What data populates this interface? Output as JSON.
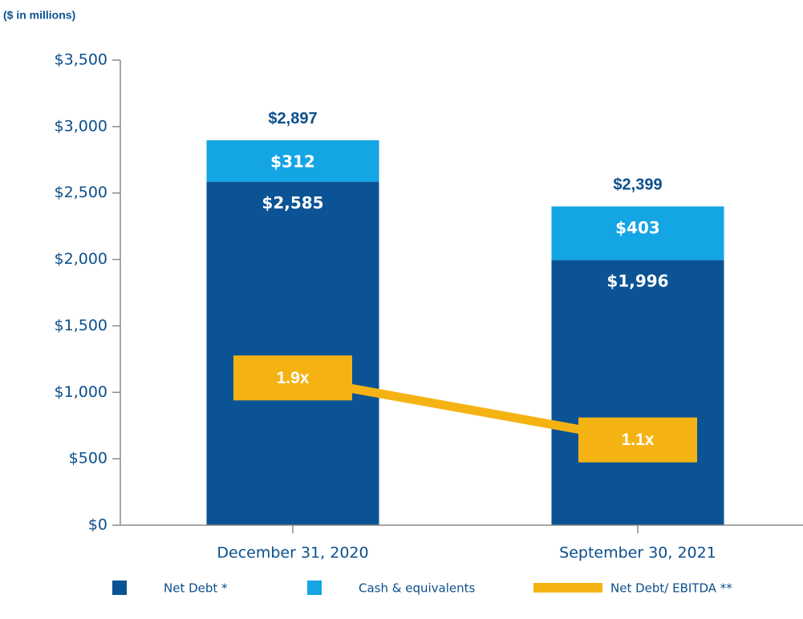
{
  "chart_data": {
    "type": "bar",
    "subtitle": "($ in millions)",
    "categories": [
      "December 31, 2020",
      "September 30, 2021"
    ],
    "series": [
      {
        "name": "Net Debt *",
        "color": "#0b5394",
        "values": [
          2585,
          1996
        ],
        "value_labels": [
          "$2,585",
          "$1,996"
        ]
      },
      {
        "name": "Cash & equivalents",
        "color": "#14a5e5",
        "values": [
          312,
          403
        ],
        "value_labels": [
          "$312",
          "$403"
        ]
      },
      {
        "name": "Net Debt/ EBITDA **",
        "type": "line",
        "axis": "y2",
        "color": "#f5b313",
        "values": [
          1.9,
          1.1
        ],
        "value_labels": [
          "1.9x",
          "1.1x"
        ]
      }
    ],
    "totals": {
      "values": [
        2897,
        2399
      ],
      "value_labels": [
        "$2,897",
        "$2,399"
      ]
    },
    "stacked": true,
    "ylim": [
      0,
      3500
    ],
    "yticks": [
      {
        "value": 0,
        "label": "$0"
      },
      {
        "value": 500,
        "label": "$500"
      },
      {
        "value": 1000,
        "label": "$1,000"
      },
      {
        "value": 1500,
        "label": "$1,500"
      },
      {
        "value": 2000,
        "label": "$2,000"
      },
      {
        "value": 2500,
        "label": "$2,500"
      },
      {
        "value": 3000,
        "label": "$3,000"
      },
      {
        "value": 3500,
        "label": "$3,500"
      }
    ],
    "y2lim": [
      0,
      6
    ],
    "grid": false,
    "legend": "bottom"
  }
}
